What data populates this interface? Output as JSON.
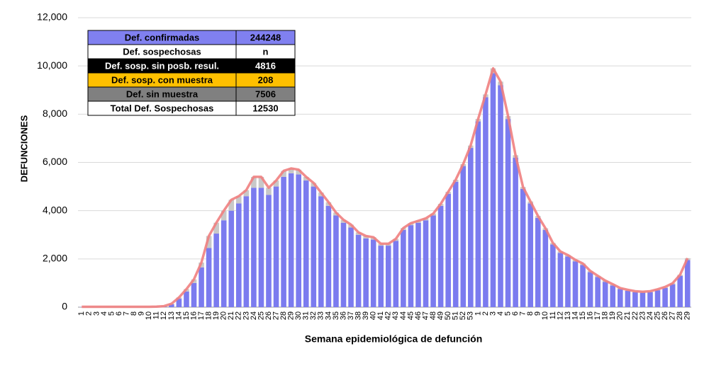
{
  "chart_data": {
    "type": "stacked_bar",
    "ylabel": "DEFUNCIONES",
    "xlabel": "Semana epidemiológica de defunción",
    "categories": [
      "1",
      "2",
      "3",
      "4",
      "5",
      "6",
      "7",
      "8",
      "9",
      "10",
      "11",
      "12",
      "13",
      "14",
      "15",
      "16",
      "17",
      "18",
      "19",
      "20",
      "21",
      "22",
      "23",
      "24",
      "25",
      "26",
      "27",
      "28",
      "29",
      "30",
      "31",
      "32",
      "33",
      "34",
      "35",
      "36",
      "37",
      "38",
      "39",
      "40",
      "41",
      "42",
      "43",
      "44",
      "45",
      "46",
      "47",
      "48",
      "49",
      "50",
      "51",
      "52",
      "53",
      "1",
      "2",
      "3",
      "4",
      "5",
      "6",
      "7",
      "8",
      "9",
      "10",
      "11",
      "12",
      "13",
      "14",
      "15",
      "16",
      "17",
      "18",
      "19",
      "20",
      "21",
      "22",
      "23",
      "24",
      "25",
      "26",
      "27",
      "28",
      "29"
    ],
    "series": [
      {
        "color": "#7b7bef",
        "values": [
          10,
          10,
          10,
          10,
          10,
          10,
          10,
          10,
          10,
          10,
          15,
          30,
          120,
          350,
          650,
          1000,
          1650,
          2450,
          3050,
          3600,
          4000,
          4300,
          4600,
          4950,
          4950,
          4650,
          5000,
          5400,
          5550,
          5500,
          5250,
          5000,
          4600,
          4200,
          3800,
          3500,
          3300,
          3000,
          2850,
          2800,
          2550,
          2550,
          2750,
          3200,
          3400,
          3500,
          3600,
          3800,
          4200,
          4700,
          5200,
          5850,
          6600,
          7700,
          8700,
          9700,
          9200,
          7800,
          6200,
          4900,
          4300,
          3700,
          3200,
          2600,
          2250,
          2100,
          1900,
          1750,
          1450,
          1250,
          1050,
          900,
          750,
          680,
          620,
          600,
          620,
          700,
          800,
          950,
          1300,
          1950
        ]
      },
      {
        "color": "#c8c8c8",
        "values": [
          5,
          5,
          5,
          5,
          5,
          5,
          5,
          5,
          5,
          5,
          5,
          10,
          20,
          50,
          100,
          150,
          200,
          500,
          450,
          400,
          450,
          300,
          250,
          450,
          450,
          300,
          250,
          250,
          200,
          200,
          150,
          150,
          150,
          150,
          120,
          120,
          120,
          100,
          100,
          100,
          80,
          80,
          80,
          80,
          80,
          80,
          80,
          80,
          80,
          80,
          80,
          80,
          100,
          100,
          120,
          200,
          150,
          120,
          100,
          80,
          80,
          80,
          70,
          60,
          60,
          60,
          60,
          60,
          50,
          50,
          50,
          50,
          40,
          40,
          40,
          40,
          40,
          40,
          40,
          40,
          40,
          80
        ]
      }
    ],
    "line_color": "#f08080",
    "ylim": [
      0,
      12000
    ],
    "yticks": [
      0,
      {
        "value": 2000,
        "label": "2,000"
      },
      {
        "value": 4000,
        "label": "4,000"
      },
      {
        "value": 6000,
        "label": "6,000"
      },
      {
        "value": 8000,
        "label": "8,000"
      },
      {
        "value": 10000,
        "label": "10,000"
      },
      {
        "value": 12000,
        "label": "12,000"
      }
    ],
    "grid": true
  },
  "table": {
    "rows": [
      {
        "label": "Def. confirmadas",
        "value": "244248",
        "bg": "#8080f0",
        "fg": "#000"
      },
      {
        "label": "Def. sospechosas",
        "value": "n",
        "bg": "#ffffff",
        "fg": "#000"
      },
      {
        "label": "Def. sosp. sin posb. resul.",
        "value": "4816",
        "bg": "#000000",
        "fg": "#fff"
      },
      {
        "label": "Def. sosp. con  muestra",
        "value": "208",
        "bg": "#ffc000",
        "fg": "#000"
      },
      {
        "label": "Def. sin muestra",
        "value": "7506",
        "bg": "#808080",
        "fg": "#000"
      },
      {
        "label": "Total Def. Sospechosas",
        "value": "12530",
        "bg": "#ffffff",
        "fg": "#000"
      }
    ]
  }
}
